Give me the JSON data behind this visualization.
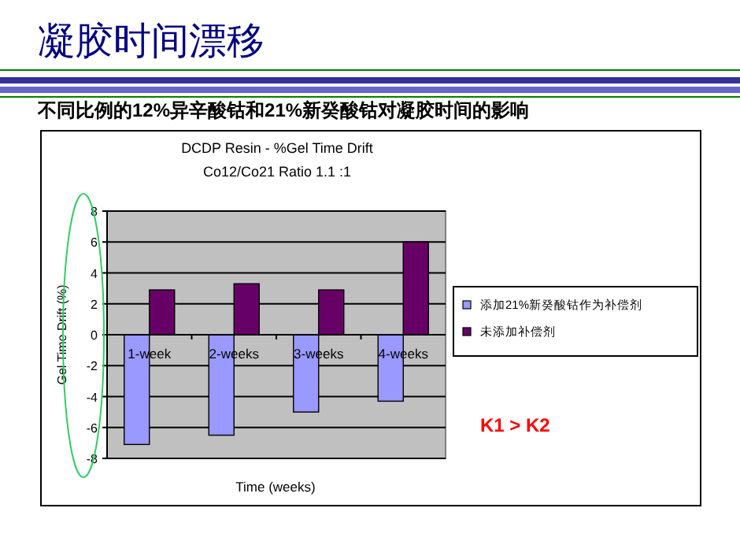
{
  "chart_data": {
    "type": "bar",
    "title": "DCDP Resin - %Gel Time Drift",
    "subtitle": "Co12/Co21 Ratio 1.1 :1",
    "xlabel": "Time (weeks)",
    "ylabel": "Gel Time Drift (%)",
    "categories": [
      "1-week",
      "2-weeks",
      "3-weeks",
      "4-weeks"
    ],
    "series": [
      {
        "name": "添加21%新癸酸钴作为补偿剂",
        "color": "#9999ff",
        "values": [
          -7.1,
          -6.5,
          -5.0,
          -4.3
        ]
      },
      {
        "name": "未添加补偿剂",
        "color": "#660066",
        "values": [
          2.9,
          3.3,
          2.9,
          6.0
        ]
      }
    ],
    "ylim": [
      -8,
      8
    ],
    "yticks": [
      -8,
      -6,
      -4,
      -2,
      0,
      2,
      4,
      6,
      8
    ],
    "grid": "y",
    "legend": "right",
    "annotations": [
      "凝胶时间漂移",
      "不同比例的12%异辛酸钴和21%新癸酸钴对凝胶时间的影响",
      "K1 > K2"
    ]
  }
}
